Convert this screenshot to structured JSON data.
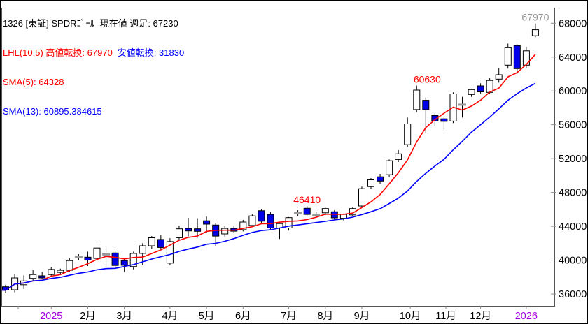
{
  "header": {
    "title": "1326 [東証] SPDRｺﾞｰﾙ  現在値 週足: 67230",
    "lhl_high": "LHL(10,5) 高値転換: 67970",
    "lhl_low": "安値転換: 31830",
    "sma5": "SMA(5): 64328",
    "sma13": "SMA(13): 60895.384615"
  },
  "colors": {
    "red": "#ff0000",
    "blue": "#0000ff",
    "candle_up": "#ffffff",
    "candle_down": "#0000e8",
    "doji": "#999999",
    "text": "#000000",
    "year": "#a000e0",
    "gray_label": "#949494",
    "tick": "#888888",
    "plot_border": "#555555",
    "outer_border": "#000000"
  },
  "chart_data": {
    "type": "candlestick",
    "title": "1326 [東証] SPDRｺﾞｰﾙ 現在値 週足: 67230",
    "timeframe": "週足",
    "current_value": 67230,
    "lhl_high_reversal": 67970,
    "lhl_low_reversal": 31830,
    "sma5_value": 64328,
    "sma13_value": 60895.384615,
    "grid": false,
    "y_axis_side": "right",
    "ylim": [
      34600,
      69840
    ],
    "yticks": [
      36000,
      40000,
      44000,
      48000,
      52000,
      56000,
      60000,
      64000,
      68000
    ],
    "xticks": [
      {
        "week": 1.38,
        "label": ""
      },
      {
        "week": 5,
        "label": "2025",
        "year": true
      },
      {
        "week": 9,
        "label": "2月"
      },
      {
        "week": 13,
        "label": "3月"
      },
      {
        "week": 18,
        "label": "4月"
      },
      {
        "week": 22,
        "label": "5月"
      },
      {
        "week": 26,
        "label": "6月"
      },
      {
        "week": 31,
        "label": "7月"
      },
      {
        "week": 35,
        "label": "8月"
      },
      {
        "week": 44.3,
        "label": "10月"
      },
      {
        "week": 39,
        "label": "9月"
      },
      {
        "week": 48.2,
        "label": "11月"
      },
      {
        "week": 52,
        "label": "12月"
      },
      {
        "week": 57,
        "label": "2026",
        "year": true
      }
    ],
    "weeks_format": [
      "open",
      "high",
      "low",
      "close",
      "color w=up-white b=down-blue g=doji-gray"
    ],
    "weeks": [
      [
        36850,
        37100,
        36100,
        36450,
        "b"
      ],
      [
        36500,
        38400,
        36200,
        37900,
        "w"
      ],
      [
        37100,
        38200,
        36600,
        37550,
        "w"
      ],
      [
        37850,
        38800,
        37500,
        38300,
        "w"
      ],
      [
        38150,
        38600,
        37800,
        37900,
        "b"
      ],
      [
        38300,
        39200,
        38100,
        38900,
        "w"
      ],
      [
        38550,
        39000,
        38300,
        38800,
        "w"
      ],
      [
        38800,
        40200,
        38600,
        39950,
        "w"
      ],
      [
        40500,
        40700,
        40000,
        40280,
        "g"
      ],
      [
        40350,
        41000,
        39300,
        40000,
        "b"
      ],
      [
        40200,
        41850,
        40000,
        41430,
        "w"
      ],
      [
        40800,
        41600,
        39200,
        40550,
        "g"
      ],
      [
        40850,
        41100,
        39100,
        39370,
        "b"
      ],
      [
        39950,
        40150,
        38600,
        39400,
        "b"
      ],
      [
        39250,
        41000,
        38900,
        40800,
        "w"
      ],
      [
        40800,
        42000,
        39400,
        41700,
        "w"
      ],
      [
        41700,
        42850,
        41300,
        42650,
        "w"
      ],
      [
        42450,
        42950,
        41200,
        41500,
        "b"
      ],
      [
        39650,
        42600,
        39400,
        42200,
        "w"
      ],
      [
        42650,
        44100,
        42400,
        43700,
        "w"
      ],
      [
        43750,
        45000,
        42800,
        43450,
        "b"
      ],
      [
        43700,
        44950,
        42650,
        43400,
        "b"
      ],
      [
        44650,
        45150,
        43250,
        44250,
        "b"
      ],
      [
        44150,
        44400,
        41700,
        42850,
        "b"
      ],
      [
        43100,
        44000,
        42800,
        43750,
        "w"
      ],
      [
        43750,
        44050,
        43200,
        43420,
        "b"
      ],
      [
        43600,
        44750,
        43400,
        44500,
        "w"
      ],
      [
        44100,
        45400,
        43900,
        45230,
        "w"
      ],
      [
        45840,
        46000,
        44400,
        44600,
        "b"
      ],
      [
        45400,
        45650,
        43600,
        43800,
        "b"
      ],
      [
        43800,
        44500,
        42500,
        44320,
        "w"
      ],
      [
        43800,
        45100,
        43500,
        45020,
        "w"
      ],
      [
        45650,
        45900,
        45200,
        45420,
        "g"
      ],
      [
        46130,
        46410,
        45300,
        45400,
        "b"
      ],
      [
        45400,
        45750,
        45000,
        45200,
        "g"
      ],
      [
        45600,
        46200,
        45300,
        46100,
        "w"
      ],
      [
        45720,
        45900,
        44800,
        45000,
        "b"
      ],
      [
        44950,
        45500,
        44700,
        45400,
        "w"
      ],
      [
        45350,
        46300,
        45200,
        46100,
        "w"
      ],
      [
        46400,
        48700,
        46300,
        48450,
        "w"
      ],
      [
        48700,
        49700,
        48400,
        49500,
        "w"
      ],
      [
        49850,
        50200,
        49000,
        49350,
        "b"
      ],
      [
        50100,
        51900,
        49800,
        51750,
        "w"
      ],
      [
        51900,
        53000,
        51600,
        52570,
        "w"
      ],
      [
        53650,
        56850,
        53400,
        56100,
        "w"
      ],
      [
        57800,
        60630,
        57500,
        60100,
        "w"
      ],
      [
        58900,
        59200,
        55000,
        57800,
        "b"
      ],
      [
        57100,
        57400,
        55900,
        56450,
        "b"
      ],
      [
        56700,
        56900,
        55300,
        56400,
        "b"
      ],
      [
        56440,
        59830,
        56200,
        59650,
        "w"
      ],
      [
        58350,
        59300,
        56850,
        58400,
        "g"
      ],
      [
        59580,
        60240,
        59300,
        60160,
        "w"
      ],
      [
        60600,
        60900,
        59700,
        59900,
        "b"
      ],
      [
        59830,
        61500,
        59600,
        61240,
        "w"
      ],
      [
        61400,
        62700,
        60980,
        61920,
        "w"
      ],
      [
        63050,
        65600,
        62640,
        65110,
        "w"
      ],
      [
        65360,
        65500,
        62060,
        62640,
        "b"
      ],
      [
        63050,
        65200,
        62700,
        64740,
        "w"
      ],
      [
        66520,
        67970,
        66350,
        67230,
        "w"
      ]
    ],
    "overlays": [
      {
        "name": "SMA(5)",
        "period": 5,
        "color": "#ff0000"
      },
      {
        "name": "SMA(13)",
        "period": 13,
        "color": "#0000ff"
      }
    ],
    "annotations": [
      {
        "text": "46410",
        "week": 33,
        "price": 46410,
        "dx": 0,
        "color": "#ff0000"
      },
      {
        "text": "60630",
        "week": 45,
        "price": 60630,
        "dx": 15,
        "color": "#ff0000"
      },
      {
        "text": "67970",
        "week": 58,
        "price": 67970,
        "dx": 0,
        "color": "#949494"
      }
    ]
  }
}
